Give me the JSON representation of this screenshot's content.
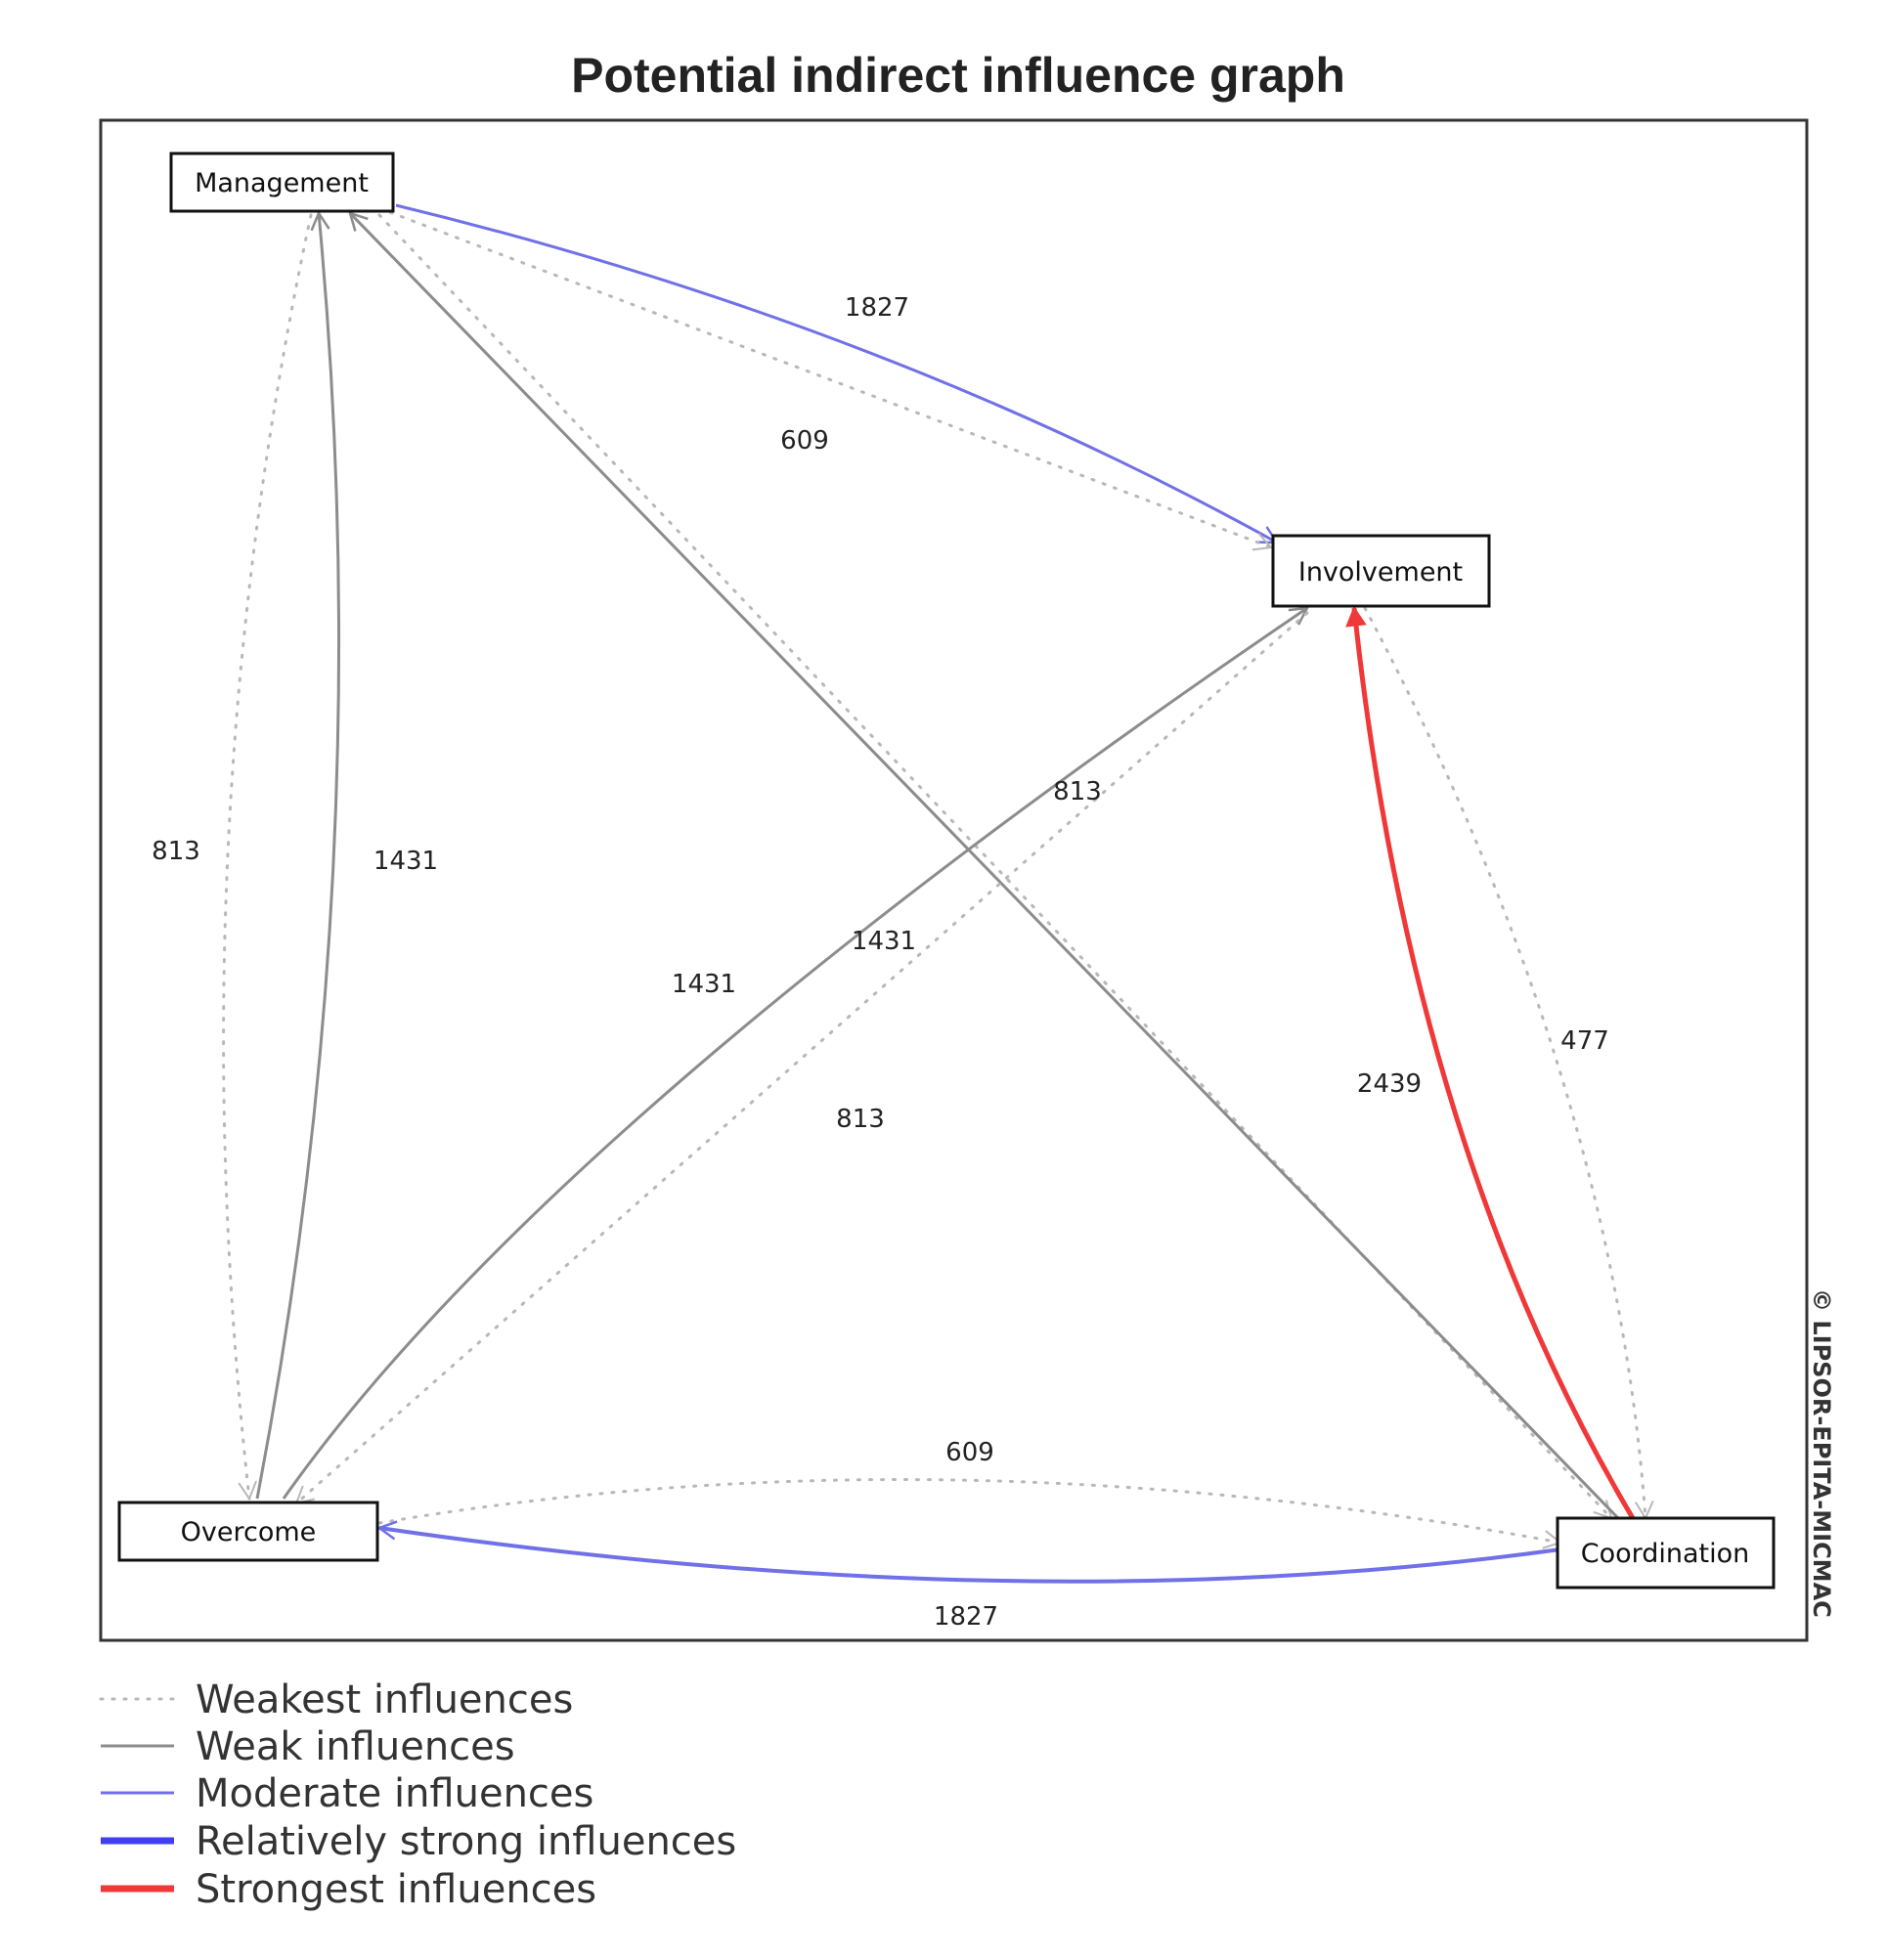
{
  "title": "Potential indirect influence graph",
  "copyright": "© LIPSOR-EPITA-MICMAC",
  "colors": {
    "weakest": "#b8b8b8",
    "weak": "#8c8c8c",
    "moderate": "#7070e8",
    "relatively_strong": "#4040f0",
    "strongest": "#f03838"
  },
  "nodes": [
    {
      "id": "management",
      "label": "Management"
    },
    {
      "id": "involvement",
      "label": "Involvement"
    },
    {
      "id": "overcome",
      "label": "Overcome"
    },
    {
      "id": "coordination",
      "label": "Coordination"
    }
  ],
  "edges": [
    {
      "from": "management",
      "to": "involvement",
      "value": "1827",
      "strength": "moderate"
    },
    {
      "from": "management",
      "to": "involvement",
      "value": "609",
      "strength": "weakest"
    },
    {
      "from": "management",
      "to": "coordination",
      "value": "813",
      "strength": "weakest"
    },
    {
      "from": "management",
      "to": "overcome",
      "value": "813",
      "strength": "weakest"
    },
    {
      "from": "overcome",
      "to": "management",
      "value": "1431",
      "strength": "weak"
    },
    {
      "from": "coordination",
      "to": "management",
      "value": "1431",
      "strength": "weak"
    },
    {
      "from": "overcome",
      "to": "involvement",
      "value": "1431",
      "strength": "weak"
    },
    {
      "from": "involvement",
      "to": "overcome",
      "value": "813",
      "strength": "weakest"
    },
    {
      "from": "coordination",
      "to": "involvement",
      "value": "2439",
      "strength": "strongest"
    },
    {
      "from": "involvement",
      "to": "coordination",
      "value": "477",
      "strength": "weakest"
    },
    {
      "from": "overcome",
      "to": "coordination",
      "value": "609",
      "strength": "weakest"
    },
    {
      "from": "coordination",
      "to": "overcome",
      "value": "1827",
      "strength": "moderate"
    }
  ],
  "legend": [
    {
      "label": "Weakest influences",
      "style": "weakest"
    },
    {
      "label": "Weak influences",
      "style": "weak"
    },
    {
      "label": "Moderate influences",
      "style": "moderate"
    },
    {
      "label": "Relatively strong influences",
      "style": "relatively_strong"
    },
    {
      "label": "Strongest influences",
      "style": "strongest"
    }
  ]
}
